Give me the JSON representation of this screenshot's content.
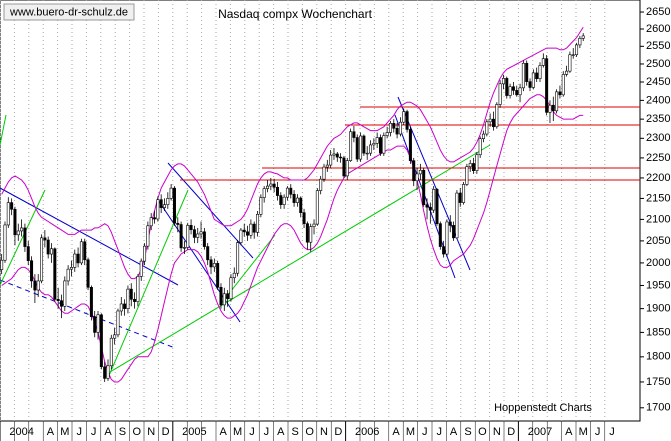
{
  "chart_data": {
    "type": "candlestick",
    "title": "Nasdaq compx Wochenchart",
    "watermark": "www.buero-dr-schulz.de",
    "source": "Hoppenstedt Charts",
    "log_scale": true,
    "ylim": [
      1675,
      2686
    ],
    "yticks": [
      1700,
      1750,
      1800,
      1850,
      1900,
      1950,
      2000,
      2050,
      2100,
      2150,
      2200,
      2250,
      2300,
      2350,
      2400,
      2450,
      2500,
      2550,
      2600,
      2650
    ],
    "categories": [
      "2004",
      null,
      null,
      "A",
      "M",
      "J",
      "J",
      "A",
      "S",
      "O",
      "N",
      "D",
      "2005",
      null,
      null,
      "A",
      "M",
      "J",
      "J",
      "A",
      "S",
      "O",
      "N",
      "D",
      "2006",
      null,
      null,
      "A",
      "M",
      "J",
      "J",
      "A",
      "S",
      "O",
      "N",
      "D",
      "2007",
      null,
      null,
      "A",
      "M",
      "J",
      "J"
    ],
    "up_color": "#ffffff",
    "down_color": "#000000",
    "open": [
      1985,
      2006,
      2087,
      2140,
      2124,
      2064,
      2073,
      2080,
      2037,
      2005,
      1960,
      1940,
      1960,
      2057,
      2052,
      2020,
      2032,
      1920,
      1917,
      1905,
      1960,
      1986,
      1990,
      2020,
      2000,
      2048,
      2007,
      1946,
      1883,
      1850,
      1887,
      1780,
      1757,
      1782,
      1838,
      1845,
      1895,
      1910,
      1900,
      1942,
      1920,
      1915,
      1970,
      2004,
      2038,
      2085,
      2104,
      2101,
      2147,
      2128,
      2135,
      2150,
      2175,
      2091,
      2088,
      2034,
      2035,
      2086,
      2076,
      2058,
      2066,
      2071,
      2037,
      2007,
      1991,
      1999,
      1946,
      1908,
      1932,
      1921,
      1967,
      1977,
      2046,
      2075,
      2071,
      2063,
      2089,
      2070,
      2112,
      2152,
      2174,
      2180,
      2185,
      2177,
      2157,
      2135,
      2153,
      2175,
      2160,
      2140,
      2151,
      2116,
      2090,
      2047,
      2083,
      2089,
      2169,
      2197,
      2227,
      2232,
      2257,
      2260,
      2252,
      2250,
      2205,
      2243,
      2317,
      2302,
      2247,
      2306,
      2262,
      2262,
      2283,
      2287,
      2302,
      2262,
      2307,
      2315,
      2339,
      2326,
      2311,
      2342,
      2370,
      2323,
      2243,
      2193,
      2210,
      2219,
      2135,
      2129,
      2122,
      2172,
      2090,
      2037,
      2020,
      2094,
      2086,
      2057,
      2163,
      2140,
      2184,
      2228,
      2236,
      2218,
      2258,
      2299,
      2311,
      2343,
      2350,
      2330,
      2389,
      2445,
      2460,
      2413,
      2437,
      2427,
      2415,
      2434,
      2502,
      2451,
      2435,
      2475,
      2459,
      2496,
      2515,
      2368,
      2387,
      2372,
      2423,
      2415,
      2471,
      2480,
      2526,
      2526,
      2554,
      2573
    ],
    "close": [
      2006,
      2087,
      2140,
      2124,
      2064,
      2073,
      2080,
      2037,
      2005,
      1960,
      1940,
      1960,
      2057,
      2052,
      2020,
      2032,
      1920,
      1917,
      1905,
      1960,
      1986,
      1990,
      2020,
      2000,
      2048,
      2007,
      1946,
      1883,
      1850,
      1887,
      1780,
      1757,
      1782,
      1838,
      1845,
      1895,
      1910,
      1900,
      1942,
      1920,
      1915,
      1970,
      2004,
      2038,
      2085,
      2104,
      2101,
      2147,
      2128,
      2135,
      2150,
      2175,
      2091,
      2088,
      2034,
      2035,
      2086,
      2076,
      2058,
      2066,
      2071,
      2037,
      2007,
      1991,
      1999,
      1946,
      1908,
      1932,
      1921,
      1967,
      1977,
      2046,
      2075,
      2071,
      2063,
      2089,
      2070,
      2112,
      2152,
      2174,
      2180,
      2185,
      2177,
      2157,
      2135,
      2153,
      2175,
      2160,
      2140,
      2151,
      2116,
      2090,
      2047,
      2083,
      2089,
      2169,
      2197,
      2227,
      2232,
      2257,
      2260,
      2252,
      2250,
      2205,
      2243,
      2317,
      2302,
      2247,
      2306,
      2262,
      2262,
      2283,
      2287,
      2302,
      2262,
      2307,
      2315,
      2339,
      2326,
      2311,
      2342,
      2370,
      2323,
      2243,
      2193,
      2210,
      2219,
      2135,
      2129,
      2122,
      2172,
      2090,
      2037,
      2020,
      2094,
      2086,
      2057,
      2163,
      2140,
      2184,
      2228,
      2236,
      2218,
      2258,
      2299,
      2311,
      2343,
      2350,
      2330,
      2389,
      2445,
      2460,
      2413,
      2437,
      2427,
      2415,
      2434,
      2502,
      2451,
      2435,
      2475,
      2459,
      2496,
      2515,
      2368,
      2387,
      2372,
      2423,
      2415,
      2471,
      2480,
      2526,
      2526,
      2554,
      2573,
      2580
    ],
    "high": [
      2020,
      2095,
      2153,
      2150,
      2130,
      2090,
      2100,
      2090,
      2050,
      2015,
      1975,
      1975,
      2065,
      2075,
      2060,
      2045,
      2035,
      1945,
      1930,
      1970,
      1995,
      2005,
      2030,
      2035,
      2055,
      2055,
      2012,
      1950,
      1895,
      1895,
      1890,
      1790,
      1795,
      1845,
      1860,
      1900,
      1925,
      1920,
      1950,
      1955,
      1935,
      1975,
      2010,
      2045,
      2095,
      2115,
      2120,
      2155,
      2160,
      2150,
      2165,
      2185,
      2180,
      2105,
      2095,
      2050,
      2092,
      2100,
      2085,
      2080,
      2095,
      2080,
      2045,
      2015,
      2010,
      2005,
      1955,
      1945,
      1940,
      1975,
      1990,
      2052,
      2080,
      2090,
      2085,
      2100,
      2095,
      2120,
      2160,
      2180,
      2195,
      2200,
      2198,
      2190,
      2165,
      2160,
      2180,
      2185,
      2170,
      2160,
      2155,
      2125,
      2095,
      2090,
      2100,
      2175,
      2205,
      2235,
      2245,
      2270,
      2275,
      2265,
      2262,
      2255,
      2250,
      2325,
      2332,
      2310,
      2315,
      2310,
      2280,
      2295,
      2300,
      2315,
      2310,
      2315,
      2330,
      2345,
      2350,
      2340,
      2355,
      2378,
      2375,
      2330,
      2250,
      2225,
      2235,
      2225,
      2150,
      2140,
      2180,
      2175,
      2095,
      2050,
      2100,
      2110,
      2095,
      2170,
      2175,
      2190,
      2235,
      2245,
      2250,
      2265,
      2305,
      2320,
      2350,
      2365,
      2370,
      2395,
      2455,
      2470,
      2465,
      2445,
      2450,
      2440,
      2445,
      2510,
      2510,
      2460,
      2485,
      2490,
      2505,
      2530,
      2525,
      2400,
      2410,
      2430,
      2440,
      2480,
      2495,
      2535,
      2545,
      2560,
      2580,
      2588
    ],
    "low": [
      1975,
      2000,
      2080,
      2110,
      2040,
      2050,
      2060,
      2025,
      1995,
      1945,
      1912,
      1925,
      1955,
      2035,
      2010,
      2000,
      1915,
      1900,
      1880,
      1895,
      1950,
      1970,
      1980,
      1990,
      1995,
      1995,
      1940,
      1875,
      1840,
      1835,
      1775,
      1750,
      1752,
      1775,
      1825,
      1840,
      1885,
      1885,
      1890,
      1905,
      1900,
      1905,
      1960,
      1995,
      2030,
      2075,
      2090,
      2095,
      2115,
      2120,
      2125,
      2145,
      2085,
      2070,
      2025,
      2020,
      2030,
      2065,
      2045,
      2045,
      2055,
      2030,
      1995,
      1975,
      1980,
      1940,
      1900,
      1895,
      1904,
      1915,
      1955,
      1970,
      2040,
      2060,
      2050,
      2055,
      2055,
      2060,
      2105,
      2140,
      2165,
      2170,
      2165,
      2145,
      2125,
      2125,
      2145,
      2150,
      2130,
      2130,
      2105,
      2080,
      2030,
      2025,
      2065,
      2085,
      2160,
      2190,
      2215,
      2225,
      2245,
      2240,
      2238,
      2200,
      2195,
      2240,
      2290,
      2240,
      2240,
      2255,
      2245,
      2255,
      2270,
      2275,
      2255,
      2255,
      2300,
      2305,
      2315,
      2300,
      2305,
      2335,
      2315,
      2235,
      2180,
      2170,
      2195,
      2130,
      2100,
      2090,
      2115,
      2085,
      2030,
      2012,
      2015,
      2070,
      2050,
      2055,
      2130,
      2135,
      2180,
      2215,
      2210,
      2210,
      2250,
      2290,
      2305,
      2330,
      2320,
      2325,
      2380,
      2430,
      2405,
      2405,
      2415,
      2410,
      2395,
      2425,
      2440,
      2425,
      2430,
      2450,
      2450,
      2490,
      2360,
      2340,
      2345,
      2365,
      2405,
      2410,
      2465,
      2475,
      2515,
      2520,
      2545,
      2565
    ],
    "bands": {
      "color": "#cc00cc",
      "upper": [
        2160,
        2175,
        2190,
        2200,
        2205,
        2200,
        2195,
        2185,
        2170,
        2150,
        2130,
        2115,
        2105,
        2100,
        2095,
        2090,
        2085,
        2080,
        2075,
        2070,
        2065,
        2065,
        2065,
        2070,
        2075,
        2075,
        2075,
        2075,
        2080,
        2080,
        2085,
        2090,
        2085,
        2070,
        2050,
        2030,
        2010,
        1990,
        1975,
        1965,
        1965,
        1970,
        1985,
        2010,
        2050,
        2090,
        2120,
        2150,
        2175,
        2190,
        2205,
        2220,
        2230,
        2235,
        2235,
        2230,
        2220,
        2210,
        2200,
        2190,
        2175,
        2160,
        2140,
        2120,
        2100,
        2095,
        2090,
        2085,
        2085,
        2085,
        2090,
        2095,
        2100,
        2110,
        2125,
        2145,
        2165,
        2185,
        2200,
        2210,
        2215,
        2215,
        2212,
        2210,
        2205,
        2200,
        2200,
        2195,
        2195,
        2195,
        2195,
        2195,
        2200,
        2210,
        2220,
        2235,
        2250,
        2265,
        2280,
        2290,
        2300,
        2305,
        2310,
        2320,
        2330,
        2335,
        2340,
        2340,
        2335,
        2330,
        2325,
        2320,
        2320,
        2320,
        2325,
        2330,
        2340,
        2350,
        2360,
        2375,
        2385,
        2390,
        2395,
        2395,
        2390,
        2385,
        2375,
        2360,
        2345,
        2330,
        2310,
        2290,
        2270,
        2255,
        2245,
        2240,
        2240,
        2245,
        2250,
        2255,
        2260,
        2265,
        2275,
        2290,
        2310,
        2335,
        2365,
        2395,
        2420,
        2440,
        2460,
        2475,
        2485,
        2490,
        2495,
        2500,
        2505,
        2510,
        2515,
        2520,
        2525,
        2530,
        2535,
        2540,
        2545,
        2545,
        2545,
        2545,
        2540,
        2540,
        2545,
        2555,
        2565,
        2575,
        2590,
        2605
      ],
      "lower": [
        1950,
        1955,
        1960,
        1965,
        1975,
        1985,
        1990,
        1990,
        1985,
        1975,
        1960,
        1945,
        1935,
        1930,
        1930,
        1925,
        1915,
        1905,
        1895,
        1890,
        1890,
        1895,
        1900,
        1905,
        1910,
        1910,
        1905,
        1890,
        1870,
        1850,
        1820,
        1790,
        1770,
        1755,
        1750,
        1750,
        1755,
        1765,
        1775,
        1785,
        1795,
        1800,
        1800,
        1800,
        1800,
        1810,
        1830,
        1855,
        1885,
        1915,
        1945,
        1975,
        2000,
        2010,
        2020,
        2025,
        2030,
        2030,
        2030,
        2025,
        2015,
        2000,
        1980,
        1955,
        1930,
        1910,
        1895,
        1885,
        1880,
        1880,
        1885,
        1890,
        1900,
        1915,
        1930,
        1950,
        1970,
        1990,
        2005,
        2020,
        2035,
        2050,
        2065,
        2075,
        2085,
        2090,
        2090,
        2085,
        2075,
        2060,
        2045,
        2035,
        2030,
        2030,
        2035,
        2045,
        2060,
        2080,
        2100,
        2125,
        2150,
        2170,
        2185,
        2200,
        2210,
        2215,
        2220,
        2225,
        2230,
        2235,
        2240,
        2245,
        2250,
        2255,
        2260,
        2265,
        2270,
        2270,
        2275,
        2280,
        2280,
        2280,
        2270,
        2250,
        2225,
        2195,
        2160,
        2120,
        2085,
        2055,
        2030,
        2010,
        1995,
        1990,
        1990,
        1995,
        2005,
        2010,
        2015,
        2020,
        2030,
        2040,
        2055,
        2075,
        2095,
        2115,
        2140,
        2170,
        2200,
        2230,
        2260,
        2290,
        2320,
        2340,
        2355,
        2365,
        2375,
        2385,
        2395,
        2405,
        2410,
        2415,
        2415,
        2410,
        2400,
        2385,
        2370,
        2360,
        2355,
        2350,
        2350,
        2350,
        2350,
        2355,
        2360,
        2360
      ]
    }
  }
}
